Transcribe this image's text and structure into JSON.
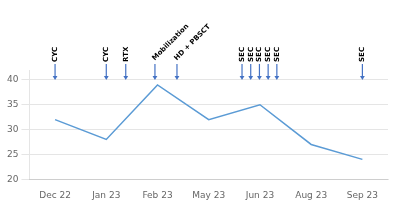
{
  "chart_data": {
    "type": "line",
    "categories": [
      "Dec 22",
      "Jan 23",
      "Feb 23",
      "May 23",
      "Jun 23",
      "Aug 23",
      "Sep 23"
    ],
    "values": [
      32,
      28,
      39,
      32,
      35,
      27,
      24
    ],
    "color": "#5b9bd5",
    "ylim": [
      20,
      42
    ],
    "yticks": [
      20,
      25,
      30,
      35,
      40
    ],
    "grid": true,
    "annotations": [
      {
        "text": "CYC",
        "x": 0.0,
        "y": 40.0,
        "color": "#4472c4"
      },
      {
        "text": "CYC",
        "x": 1.0,
        "y": 40.0,
        "color": "#4472c4"
      },
      {
        "text": "RTX",
        "x": 1.38,
        "y": 40.0,
        "color": "#4472c4"
      },
      {
        "text": "Mobilization",
        "x": 1.95,
        "y": 40.0,
        "color": "#4472c4"
      },
      {
        "text": "HD + PBSCT",
        "x": 2.38,
        "y": 40.0,
        "color": "#4472c4"
      },
      {
        "text": "SEC",
        "x": 3.65,
        "y": 40.0,
        "color": "#4472c4"
      },
      {
        "text": "SEC",
        "x": 3.82,
        "y": 40.0,
        "color": "#4472c4"
      },
      {
        "text": "SEC",
        "x": 3.99,
        "y": 40.0,
        "color": "#4472c4"
      },
      {
        "text": "SEC",
        "x": 4.16,
        "y": 40.0,
        "color": "#4472c4"
      },
      {
        "text": "SEC",
        "x": 4.33,
        "y": 40.0,
        "color": "#4472c4"
      },
      {
        "text": "SEC",
        "x": 6.0,
        "y": 40.0,
        "color": "#4472c4"
      }
    ]
  }
}
